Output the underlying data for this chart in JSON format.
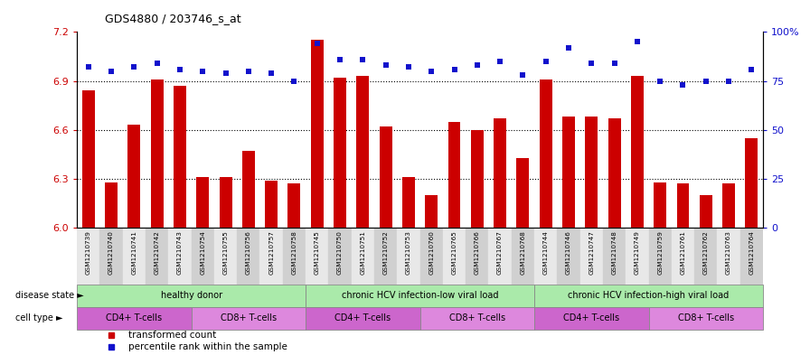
{
  "title": "GDS4880 / 203746_s_at",
  "samples": [
    "GSM1210739",
    "GSM1210740",
    "GSM1210741",
    "GSM1210742",
    "GSM1210743",
    "GSM1210754",
    "GSM1210755",
    "GSM1210756",
    "GSM1210757",
    "GSM1210758",
    "GSM1210745",
    "GSM1210750",
    "GSM1210751",
    "GSM1210752",
    "GSM1210753",
    "GSM1210760",
    "GSM1210765",
    "GSM1210766",
    "GSM1210767",
    "GSM1210768",
    "GSM1210744",
    "GSM1210746",
    "GSM1210747",
    "GSM1210748",
    "GSM1210749",
    "GSM1210759",
    "GSM1210761",
    "GSM1210762",
    "GSM1210763",
    "GSM1210764"
  ],
  "bar_values": [
    6.84,
    6.28,
    6.63,
    6.91,
    6.87,
    6.31,
    6.31,
    6.47,
    6.29,
    6.27,
    7.15,
    6.92,
    6.93,
    6.62,
    6.31,
    6.2,
    6.65,
    6.6,
    6.67,
    6.43,
    6.91,
    6.68,
    6.68,
    6.67,
    6.93,
    6.28,
    6.27,
    6.2,
    6.27,
    6.55
  ],
  "percentile_values": [
    82,
    80,
    82,
    84,
    81,
    80,
    79,
    80,
    79,
    75,
    94,
    86,
    86,
    83,
    82,
    80,
    81,
    83,
    85,
    78,
    85,
    92,
    84,
    84,
    95,
    75,
    73,
    75,
    75,
    81
  ],
  "bar_color": "#CC0000",
  "percentile_color": "#1111CC",
  "ylim": [
    6.0,
    7.2
  ],
  "y2lim": [
    0,
    100
  ],
  "yticks": [
    6.0,
    6.3,
    6.6,
    6.9,
    7.2
  ],
  "y2ticks": [
    0,
    25,
    50,
    75,
    100
  ],
  "disease_states": [
    {
      "label": "healthy donor",
      "start": 0,
      "end": 10,
      "color": "#aaeaaa"
    },
    {
      "label": "chronic HCV infection-low viral load",
      "start": 10,
      "end": 20,
      "color": "#aaeaaa"
    },
    {
      "label": "chronic HCV infection-high viral load",
      "start": 20,
      "end": 30,
      "color": "#aaeaaa"
    }
  ],
  "cell_type_colors": [
    "#dd80dd",
    "#ee88ee"
  ],
  "cell_types": [
    {
      "label": "CD4+ T-cells",
      "start": 0,
      "end": 5,
      "color": "#dd80dd"
    },
    {
      "label": "CD8+ T-cells",
      "start": 5,
      "end": 10,
      "color": "#ee99ee"
    },
    {
      "label": "CD4+ T-cells",
      "start": 10,
      "end": 15,
      "color": "#dd80dd"
    },
    {
      "label": "CD8+ T-cells",
      "start": 15,
      "end": 20,
      "color": "#ee99ee"
    },
    {
      "label": "CD4+ T-cells",
      "start": 20,
      "end": 25,
      "color": "#dd80dd"
    },
    {
      "label": "CD8+ T-cells",
      "start": 25,
      "end": 30,
      "color": "#ee99ee"
    }
  ],
  "legend_bar_label": "transformed count",
  "legend_pct_label": "percentile rank within the sample"
}
